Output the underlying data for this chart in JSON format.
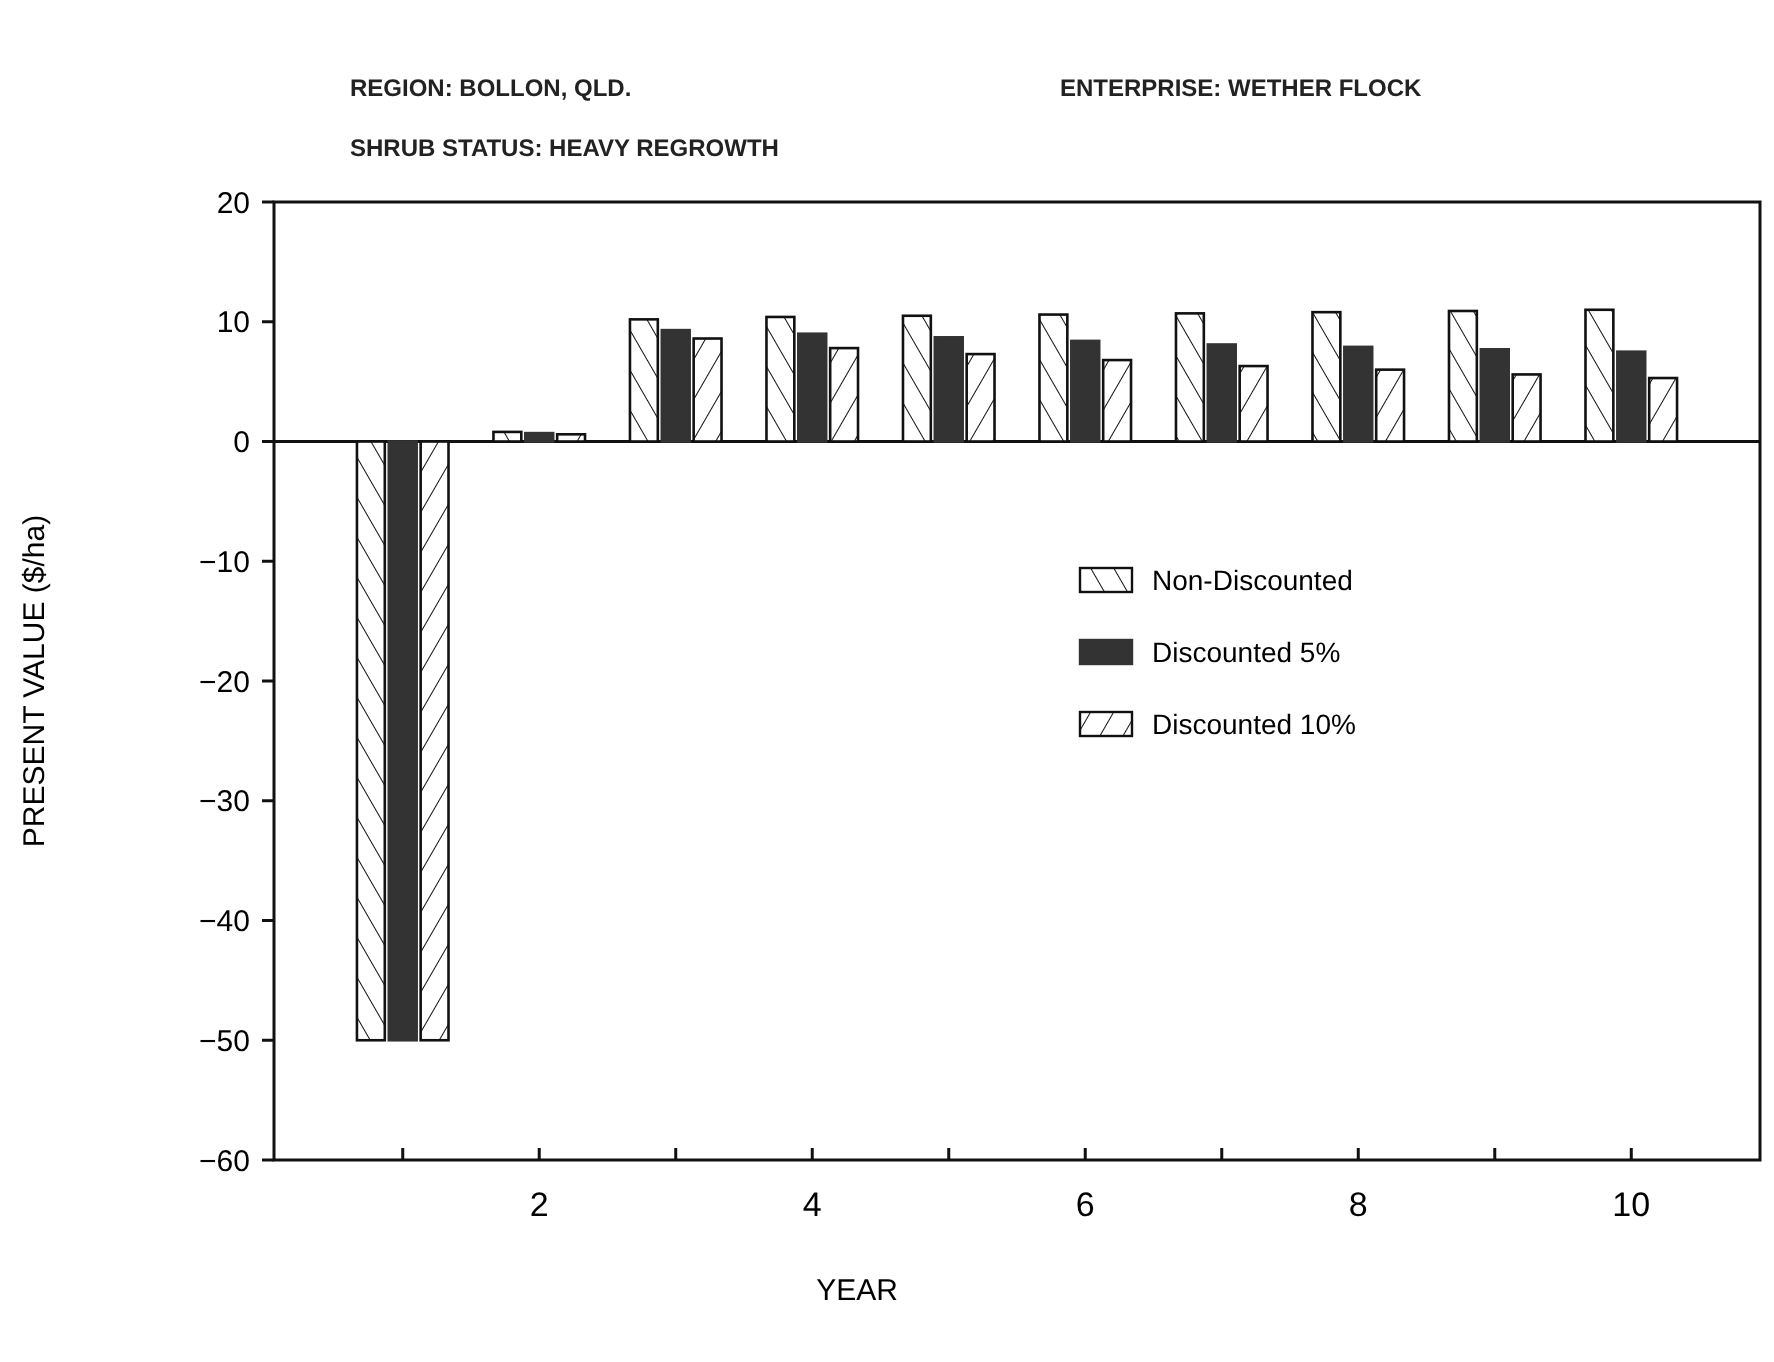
{
  "chart_data": {
    "type": "bar",
    "xlabel": "YEAR",
    "ylabel": "PRESENT VALUE ($/ha)",
    "annotations": [
      "REGION: BOLLON, QLD.",
      "ENTERPRISE: WETHER FLOCK",
      "SHRUB STATUS: HEAVY REGROWTH"
    ],
    "categories": [
      null,
      "2",
      null,
      "4",
      null,
      "6",
      null,
      "8",
      null,
      "10"
    ],
    "series": [
      {
        "name": "Non-Discounted",
        "color": "#111111",
        "values": [
          -50,
          0.8,
          10.2,
          10.4,
          10.5,
          10.6,
          10.7,
          10.8,
          10.9,
          11.0
        ]
      },
      {
        "name": "Discounted  5%",
        "color": "#333333",
        "values": [
          -50,
          0.7,
          9.3,
          9.0,
          8.7,
          8.4,
          8.1,
          7.9,
          7.7,
          7.5
        ]
      },
      {
        "name": "Discounted 10%",
        "color": "#111111",
        "values": [
          -50,
          0.6,
          8.6,
          7.8,
          7.3,
          6.8,
          6.3,
          6.0,
          5.6,
          5.3
        ]
      }
    ],
    "ylim": [
      -60,
      20
    ],
    "yticks": [
      -60,
      -50,
      -40,
      -30,
      -20,
      -10,
      0,
      10,
      20
    ],
    "legend": "right"
  }
}
